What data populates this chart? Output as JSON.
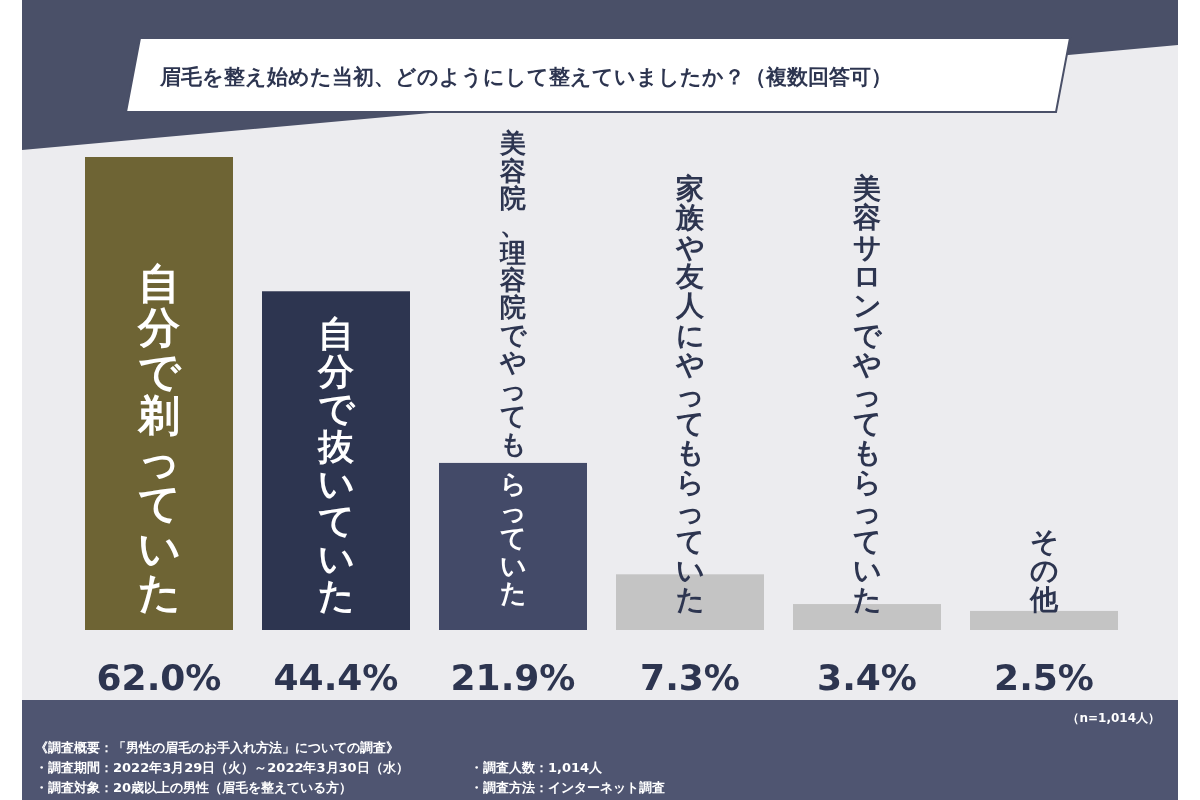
{
  "chart_data": {
    "type": "bar",
    "title": "眉毛を整え始めた当初、どのようにして整えていましたか？（複数回答可）",
    "categories": [
      "自分で剃っていた",
      "自分で抜いていた",
      "美容院、理容院でやってもらっていた",
      "家族や友人にやってもらっていた",
      "美容サロンでやってもらっていた",
      "その他"
    ],
    "values": [
      62.0,
      44.4,
      21.9,
      7.3,
      3.4,
      2.5
    ],
    "value_labels": [
      "62.0%",
      "44.4%",
      "21.9%",
      "7.3%",
      "3.4%",
      "2.5%"
    ],
    "colors": [
      "#6e6434",
      "#2d3550",
      "#434a68",
      "#c4c4c4",
      "#c4c4c4",
      "#c4c4c4"
    ],
    "annotations": [
      "（n=1,014人）",
      "《調査概要：「男性の眉毛のお手入れ方法」についての調査》",
      "・調査期間：2022年3月29日（火）～2022年3月30日（水）",
      "・調査対象：20歳以上の男性（眉毛を整えている方）",
      "・調査人数：1,014人",
      "・調査方法：インターネット調査"
    ]
  }
}
